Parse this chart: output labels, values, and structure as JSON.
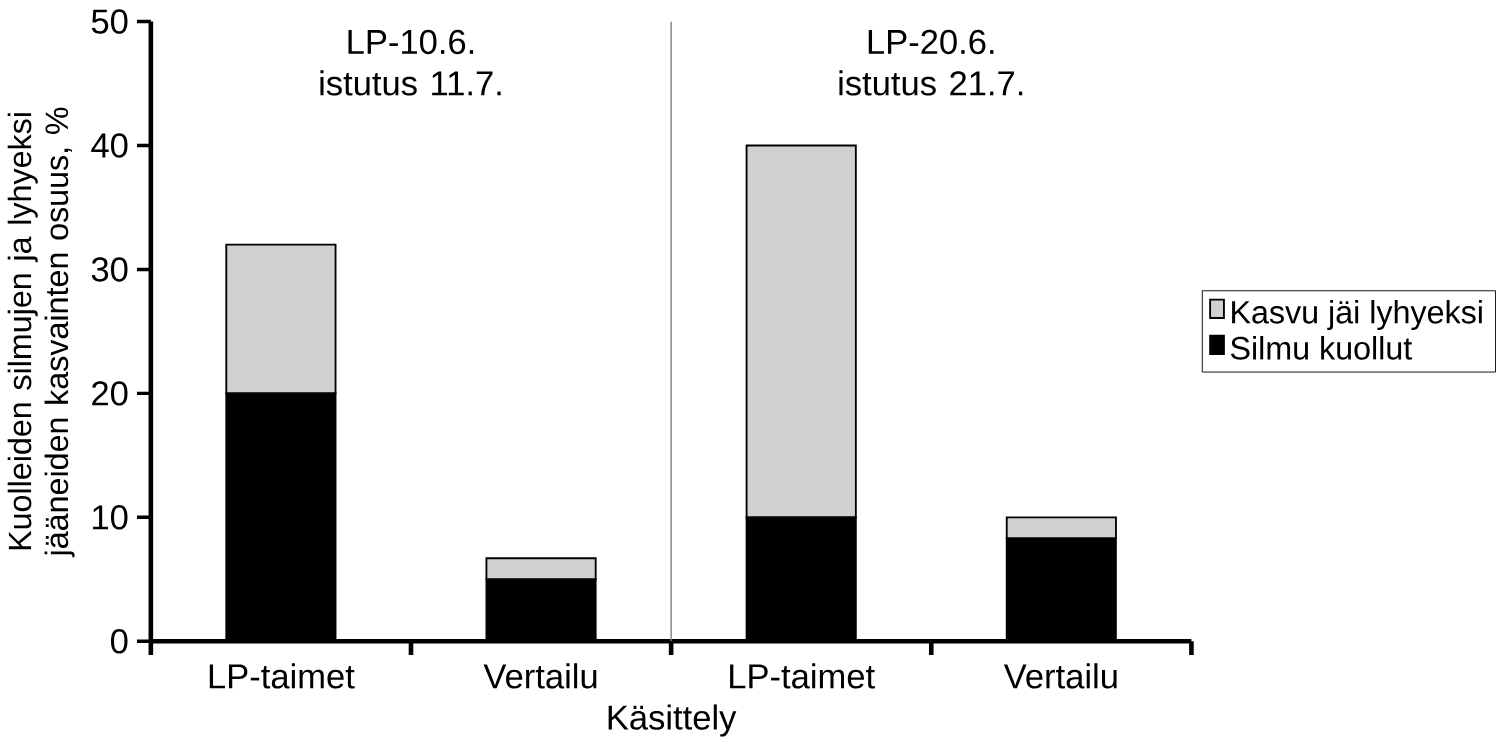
{
  "chart_data": {
    "type": "bar",
    "stacked": true,
    "xlabel": "Käsittely",
    "ylabel": "Kuolleiden silmujen ja lyhyeksi jääneiden kasvainten osuus, %",
    "categories": [
      "LP-taimet",
      "Vertailu",
      "LP-taimet",
      "Vertailu"
    ],
    "series": [
      {
        "name": "Silmu kuollut",
        "color": "#000000",
        "values": [
          20,
          5,
          10,
          8.3
        ]
      },
      {
        "name": "Kasvu jäi lyhyeksi",
        "color": "#d0d0d0",
        "values": [
          12,
          1.7,
          30,
          1.7
        ]
      }
    ],
    "ylim": [
      0,
      50
    ],
    "yticks": [
      0,
      10,
      20,
      30,
      40,
      50
    ],
    "annotations": [
      "LP-10.6. istutus 11.7.",
      "LP-20.6. istutus 21.7."
    ],
    "legend": "right",
    "grid": false
  }
}
